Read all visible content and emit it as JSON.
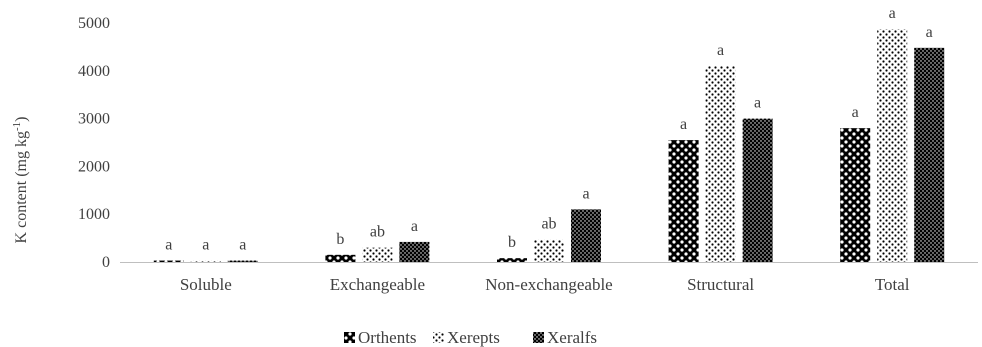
{
  "chart_data": {
    "type": "bar",
    "categories": [
      "Soluble",
      "Exchangeable",
      "Non-exchangeable",
      "Structural",
      "Total"
    ],
    "ylabel_main": "K content (mg kg",
    "ylabel_sup": "-1",
    "ylabel_close": ")",
    "ylim": [
      0,
      5000
    ],
    "yticks": [
      "0",
      "1000",
      "2000",
      "3000",
      "4000",
      "5000"
    ],
    "ytick_values": [
      0,
      1000,
      2000,
      3000,
      4000,
      5000
    ],
    "grid": false,
    "legend_position": "bottom",
    "series": [
      {
        "name": "Orthents",
        "pattern": "dots-large",
        "values": [
          30,
          150,
          80,
          2550,
          2800
        ],
        "labels": [
          "a",
          "b",
          "b",
          "a",
          "a"
        ]
      },
      {
        "name": "Xerepts",
        "pattern": "dots-sparse",
        "values": [
          30,
          300,
          470,
          4100,
          4870
        ],
        "labels": [
          "a",
          "ab",
          "ab",
          "a",
          "a"
        ]
      },
      {
        "name": "Xeralfs",
        "pattern": "dots-dense",
        "values": [
          30,
          420,
          1100,
          3000,
          4480
        ],
        "labels": [
          "a",
          "a",
          "a",
          "a",
          "a"
        ]
      }
    ],
    "colors": {
      "ink": "#000000",
      "fill": "#ffffff",
      "text": "#404040",
      "axis": "#bfbfbf"
    }
  }
}
